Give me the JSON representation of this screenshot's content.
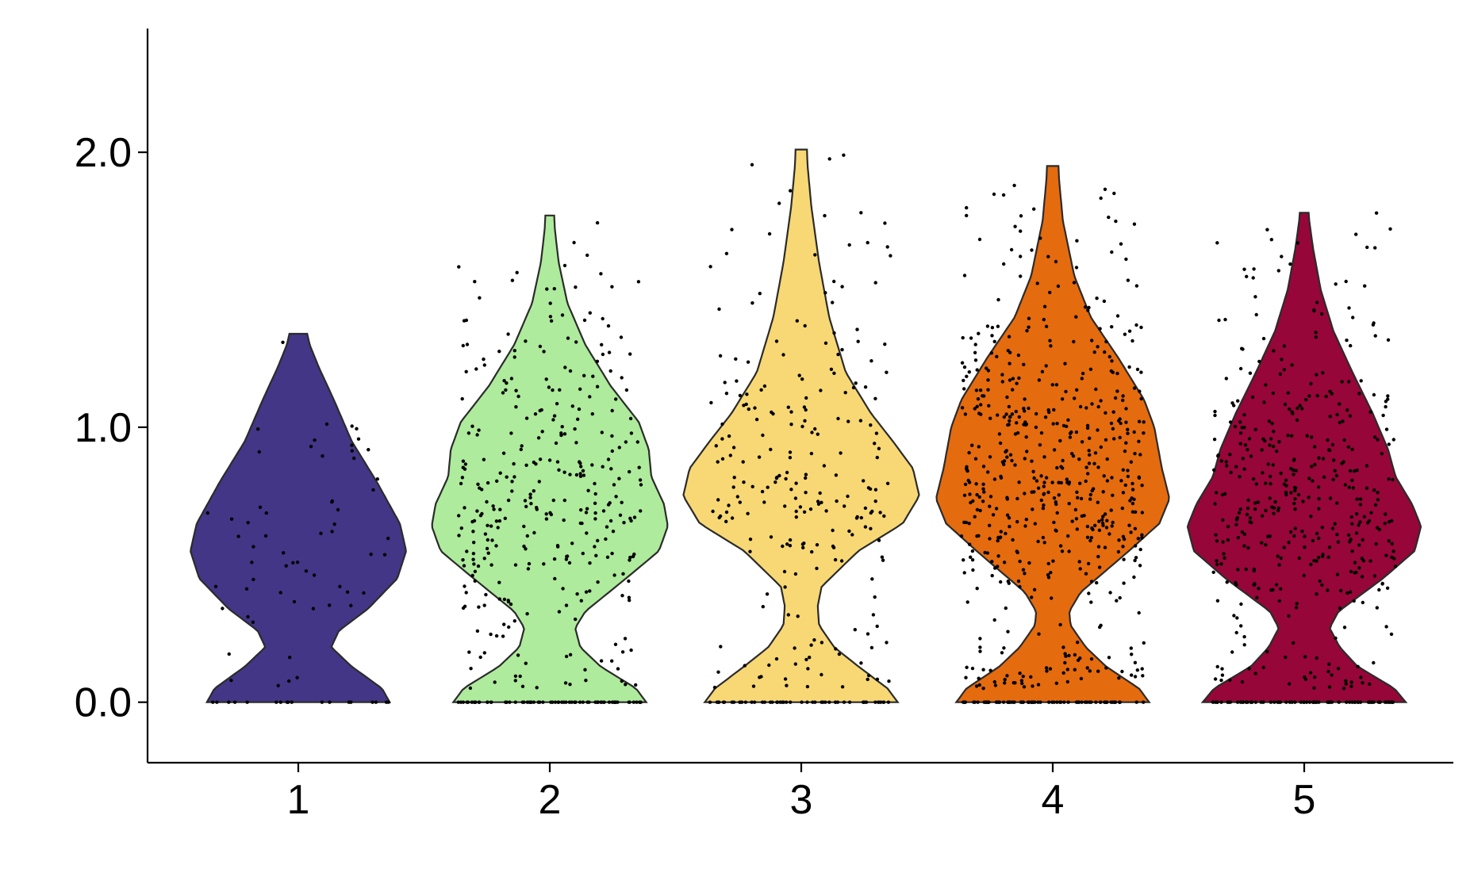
{
  "chart_data": {
    "type": "violin",
    "title": "",
    "xlabel": "",
    "ylabel": "",
    "categories": [
      "1",
      "2",
      "3",
      "4",
      "5"
    ],
    "y_ticks": [
      "0.0",
      "1.0",
      "2.0"
    ],
    "ylim": [
      -0.22,
      2.45
    ],
    "grid": false,
    "legend": "none",
    "colors": [
      "#433687",
      "#aeeb9c",
      "#f8d875",
      "#e56b0f",
      "#960638"
    ],
    "violins": [
      {
        "category": "1",
        "n_points": 60,
        "zero_points": 18,
        "profile": [
          [
            0.0,
            0.72
          ],
          [
            0.05,
            0.66
          ],
          [
            0.13,
            0.42
          ],
          [
            0.2,
            0.26
          ],
          [
            0.26,
            0.32
          ],
          [
            0.34,
            0.55
          ],
          [
            0.45,
            0.78
          ],
          [
            0.55,
            0.85
          ],
          [
            0.65,
            0.8
          ],
          [
            0.8,
            0.62
          ],
          [
            0.95,
            0.42
          ],
          [
            1.1,
            0.28
          ],
          [
            1.22,
            0.16
          ],
          [
            1.3,
            0.09
          ],
          [
            1.34,
            0.07
          ]
        ]
      },
      {
        "category": "2",
        "n_points": 330,
        "zero_points": 70,
        "profile": [
          [
            0.0,
            0.76
          ],
          [
            0.05,
            0.68
          ],
          [
            0.13,
            0.4
          ],
          [
            0.2,
            0.24
          ],
          [
            0.27,
            0.2
          ],
          [
            0.33,
            0.28
          ],
          [
            0.45,
            0.6
          ],
          [
            0.55,
            0.86
          ],
          [
            0.64,
            0.93
          ],
          [
            0.72,
            0.9
          ],
          [
            0.82,
            0.8
          ],
          [
            0.92,
            0.78
          ],
          [
            1.02,
            0.7
          ],
          [
            1.15,
            0.48
          ],
          [
            1.3,
            0.28
          ],
          [
            1.45,
            0.14
          ],
          [
            1.6,
            0.07
          ],
          [
            1.72,
            0.04
          ],
          [
            1.77,
            0.035
          ]
        ]
      },
      {
        "category": "3",
        "n_points": 230,
        "zero_points": 50,
        "profile": [
          [
            0.0,
            0.76
          ],
          [
            0.05,
            0.68
          ],
          [
            0.13,
            0.45
          ],
          [
            0.2,
            0.26
          ],
          [
            0.28,
            0.14
          ],
          [
            0.35,
            0.13
          ],
          [
            0.42,
            0.16
          ],
          [
            0.55,
            0.45
          ],
          [
            0.65,
            0.8
          ],
          [
            0.75,
            0.93
          ],
          [
            0.85,
            0.88
          ],
          [
            0.95,
            0.72
          ],
          [
            1.05,
            0.55
          ],
          [
            1.2,
            0.35
          ],
          [
            1.4,
            0.22
          ],
          [
            1.6,
            0.14
          ],
          [
            1.8,
            0.08
          ],
          [
            1.95,
            0.05
          ],
          [
            2.01,
            0.045
          ]
        ]
      },
      {
        "category": "4",
        "n_points": 560,
        "zero_points": 75,
        "profile": [
          [
            0.0,
            0.76
          ],
          [
            0.05,
            0.68
          ],
          [
            0.13,
            0.42
          ],
          [
            0.2,
            0.26
          ],
          [
            0.28,
            0.14
          ],
          [
            0.33,
            0.13
          ],
          [
            0.4,
            0.22
          ],
          [
            0.55,
            0.6
          ],
          [
            0.65,
            0.84
          ],
          [
            0.74,
            0.92
          ],
          [
            0.85,
            0.86
          ],
          [
            1.0,
            0.8
          ],
          [
            1.1,
            0.72
          ],
          [
            1.25,
            0.52
          ],
          [
            1.4,
            0.3
          ],
          [
            1.55,
            0.17
          ],
          [
            1.75,
            0.08
          ],
          [
            1.9,
            0.05
          ],
          [
            1.95,
            0.045
          ]
        ]
      },
      {
        "category": "5",
        "n_points": 420,
        "zero_points": 70,
        "profile": [
          [
            0.0,
            0.8
          ],
          [
            0.05,
            0.71
          ],
          [
            0.13,
            0.42
          ],
          [
            0.2,
            0.28
          ],
          [
            0.27,
            0.2
          ],
          [
            0.33,
            0.27
          ],
          [
            0.45,
            0.62
          ],
          [
            0.55,
            0.87
          ],
          [
            0.64,
            0.92
          ],
          [
            0.72,
            0.85
          ],
          [
            0.82,
            0.72
          ],
          [
            0.92,
            0.66
          ],
          [
            1.05,
            0.54
          ],
          [
            1.2,
            0.38
          ],
          [
            1.35,
            0.23
          ],
          [
            1.5,
            0.13
          ],
          [
            1.65,
            0.07
          ],
          [
            1.75,
            0.04
          ],
          [
            1.78,
            0.035
          ]
        ]
      }
    ]
  }
}
